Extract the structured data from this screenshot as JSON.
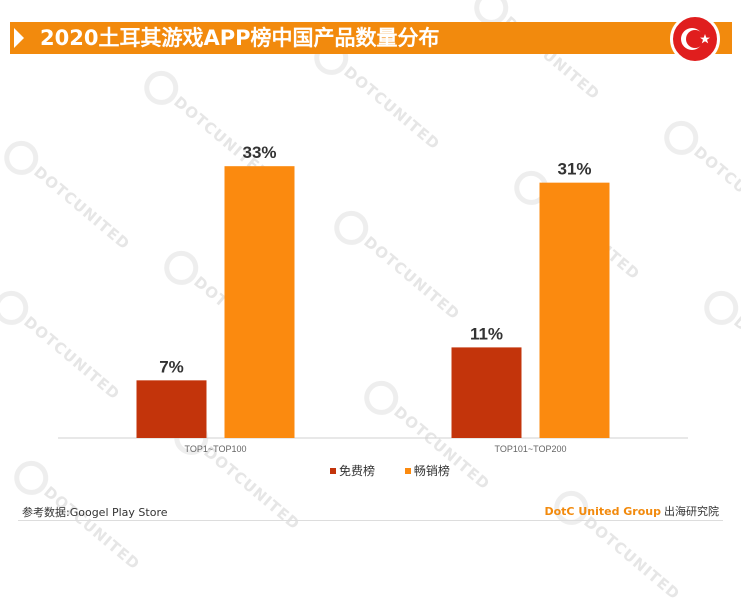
{
  "header": {
    "title": "2020土耳其游戏APP榜中国产品数量分布"
  },
  "watermark_text": "DOTCUNITED",
  "chart_data": {
    "type": "bar",
    "categories": [
      "TOP1~TOP100",
      "TOP101~TOP200"
    ],
    "series": [
      {
        "name": "免费榜",
        "values": [
          7,
          11
        ],
        "labels": [
          "7%",
          "11%"
        ],
        "color": "#c3340b"
      },
      {
        "name": "畅销榜",
        "values": [
          33,
          31
        ],
        "labels": [
          "33%",
          "31%"
        ],
        "color": "#fb8a0f"
      }
    ],
    "ylim": [
      0,
      38
    ],
    "grid": false,
    "legend_position": "bottom-center"
  },
  "footer": {
    "source": "参考数据:Googel Play Store",
    "brand_en": "DotC United Group",
    "brand_cn": "出海研究院"
  },
  "colors": {
    "accent": "#f28a0d",
    "flag_red": "#e01e1e"
  }
}
